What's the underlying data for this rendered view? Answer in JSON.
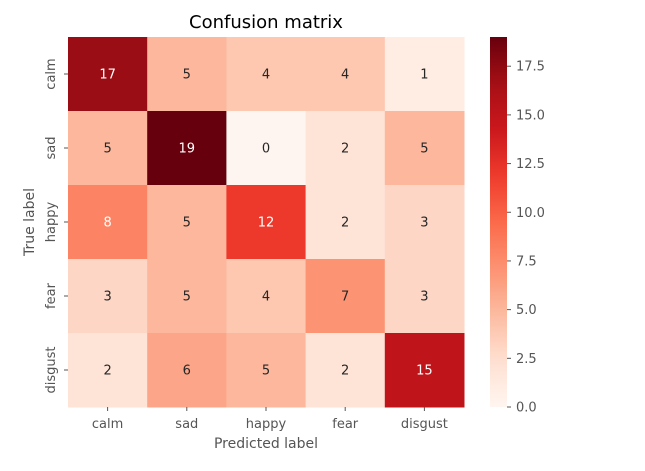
{
  "chart_data": {
    "type": "heatmap",
    "title": "Confusion matrix",
    "xlabel": "Predicted label",
    "ylabel": "True label",
    "x_categories": [
      "calm",
      "sad",
      "happy",
      "fear",
      "disgust"
    ],
    "y_categories": [
      "calm",
      "sad",
      "happy",
      "fear",
      "disgust"
    ],
    "values": [
      [
        17,
        5,
        4,
        4,
        1
      ],
      [
        5,
        19,
        0,
        2,
        5
      ],
      [
        8,
        5,
        12,
        2,
        3
      ],
      [
        3,
        5,
        4,
        7,
        3
      ],
      [
        2,
        6,
        5,
        2,
        15
      ]
    ],
    "colormap": "Reds",
    "colorbar": {
      "range": [
        0,
        19
      ],
      "ticks": [
        0.0,
        2.5,
        5.0,
        7.5,
        10.0,
        12.5,
        15.0,
        17.5
      ],
      "tick_labels": [
        "0.0",
        "2.5",
        "5.0",
        "7.5",
        "10.0",
        "12.5",
        "15.0",
        "17.5"
      ]
    },
    "colors": {
      "low": "#fff5f0",
      "high": "#67000d",
      "text_dark": "#262626",
      "text_light": "#ffffff"
    }
  }
}
